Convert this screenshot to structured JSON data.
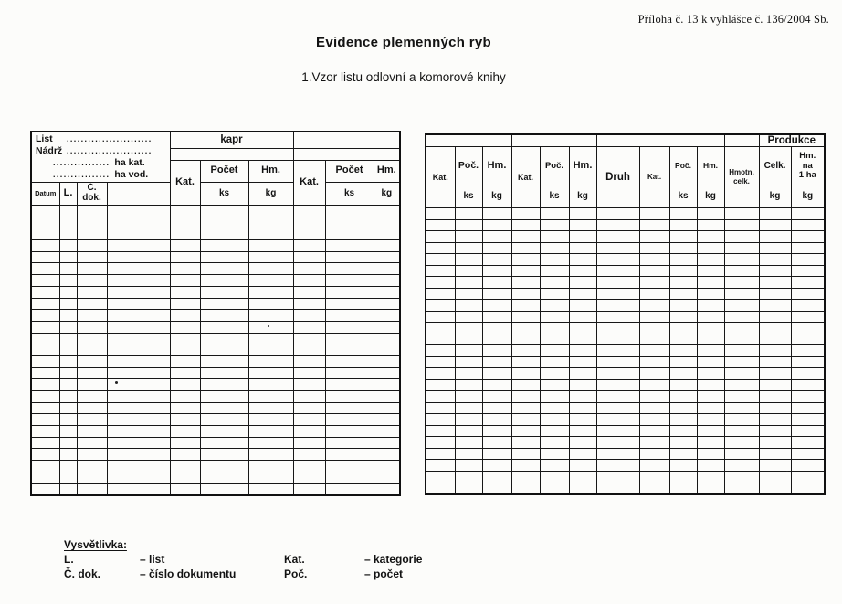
{
  "page": {
    "attribution": "Příloha č. 13 k vyhlášce č. 136/2004 Sb.",
    "title": "Evidence plemenných ryb",
    "subtitle": "1.Vzor listu odlovní a komorové knihy"
  },
  "left_table": {
    "info_box": {
      "line1_label": "List",
      "line1_dots": "........................",
      "line2_label": "Nádrž",
      "line2_dots": "........................",
      "line3_dots": "................",
      "line3_label": "ha kat.",
      "line4_dots": "................",
      "line4_label": "ha vod."
    },
    "species_header": "kapr",
    "columns": {
      "datum": "Datum",
      "l": "L.",
      "c_dok_lines": [
        "Č.",
        "dok."
      ],
      "kat": "Kat.",
      "pocet": "Počet",
      "ks": "ks",
      "hm": "Hm.",
      "kg": "kg"
    },
    "body_rows": 25,
    "body_cols": 10
  },
  "right_table": {
    "produkce_header": "Produkce",
    "columns": {
      "kat": "Kat.",
      "poc": "Poč.",
      "hm": "Hm.",
      "ks": "ks",
      "kg": "kg",
      "druh": "Druh",
      "hmotn_celk": "Hmotn. celk.",
      "celk": "Celk.",
      "hm_na_1ha_lines": [
        "Hm.",
        "na",
        "1 ha"
      ]
    },
    "body_rows": 25,
    "body_cols": 13
  },
  "legend": {
    "title": "Vysvětlivka:",
    "entries": [
      {
        "abbr": "L.",
        "meaning": "– list"
      },
      {
        "abbr": "Č. dok.",
        "meaning": "– číslo dokumentu"
      },
      {
        "abbr": "Kat.",
        "meaning": "– kategorie"
      },
      {
        "abbr": "Poč.",
        "meaning": "– počet"
      }
    ]
  },
  "colors": {
    "ink": "#121212",
    "paper": "#fcfcfa"
  }
}
